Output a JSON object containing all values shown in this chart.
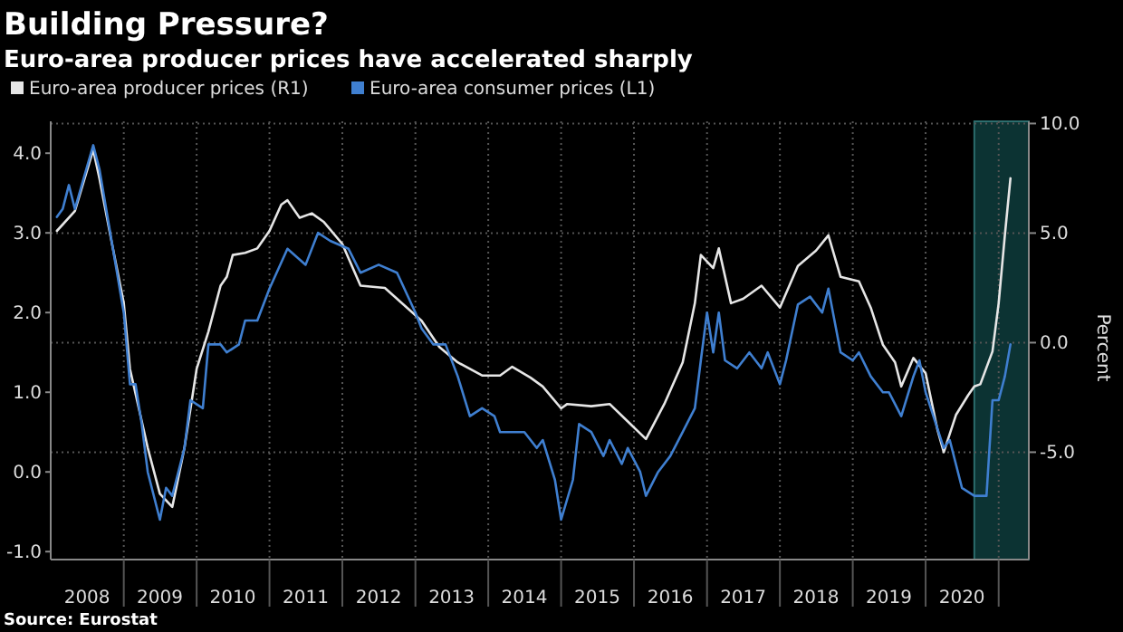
{
  "chart_data": {
    "type": "line",
    "title": "Building Pressure?",
    "subtitle": "Euro-area producer prices have accelerated sharply",
    "y2label": "Percent",
    "annotations": [
      "Source:  Eurostat"
    ],
    "legend": "top left",
    "grid": true,
    "marker": "none",
    "line_style": "solid",
    "xlim": [
      "2008-01",
      "2021-06"
    ],
    "xticks": [
      {
        "value": "2008-07",
        "label": "2008"
      },
      {
        "value": "2009-01",
        "label": null
      },
      {
        "value": "2009-07",
        "label": "2009"
      },
      {
        "value": "2010-01",
        "label": null
      },
      {
        "value": "2010-07",
        "label": "2010"
      },
      {
        "value": "2011-01",
        "label": null
      },
      {
        "value": "2011-07",
        "label": "2011"
      },
      {
        "value": "2012-01",
        "label": null
      },
      {
        "value": "2012-07",
        "label": "2012"
      },
      {
        "value": "2013-01",
        "label": null
      },
      {
        "value": "2013-07",
        "label": "2013"
      },
      {
        "value": "2014-01",
        "label": null
      },
      {
        "value": "2014-07",
        "label": "2014"
      },
      {
        "value": "2015-01",
        "label": null
      },
      {
        "value": "2015-07",
        "label": "2015"
      },
      {
        "value": "2016-01",
        "label": null
      },
      {
        "value": "2016-07",
        "label": "2016"
      },
      {
        "value": "2017-01",
        "label": null
      },
      {
        "value": "2017-07",
        "label": "2017"
      },
      {
        "value": "2018-01",
        "label": null
      },
      {
        "value": "2018-07",
        "label": "2018"
      },
      {
        "value": "2019-01",
        "label": null
      },
      {
        "value": "2019-07",
        "label": "2019"
      },
      {
        "value": "2020-01",
        "label": null
      },
      {
        "value": "2020-07",
        "label": "2020"
      },
      {
        "value": "2021-01",
        "label": null
      }
    ],
    "ylim": [
      -1.1,
      4.4
    ],
    "yticks": [
      {
        "value": -1,
        "label": "-1.0"
      },
      {
        "value": 0,
        "label": "0.0"
      },
      {
        "value": 1,
        "label": "1.0"
      },
      {
        "value": 2,
        "label": "2.0"
      },
      {
        "value": 3,
        "label": "3.0"
      },
      {
        "value": 4,
        "label": "4.0"
      }
    ],
    "y2lim": [
      -9.9,
      10.1
    ],
    "y2ticks": [
      {
        "value": -5,
        "label": "-5.0"
      },
      {
        "value": 0,
        "label": "0.0"
      },
      {
        "value": 5,
        "label": "5.0"
      },
      {
        "value": 10,
        "label": "10.0"
      }
    ],
    "bands": [
      {
        "axis": "x",
        "from": "2020-09",
        "to": "2021-06",
        "color": "#0c3333"
      }
    ],
    "series": [
      {
        "name": "Euro-area producer prices (R1)",
        "color": "#e6e6e6",
        "axis": "y2",
        "x": [
          "2008-02",
          "2008-05",
          "2008-08",
          "2008-09",
          "2008-11",
          "2009-01",
          "2009-02",
          "2009-05",
          "2009-07",
          "2009-09",
          "2009-11",
          "2010-01",
          "2010-03",
          "2010-05",
          "2010-06",
          "2010-07",
          "2010-09",
          "2010-11",
          "2011-01",
          "2011-03",
          "2011-04",
          "2011-06",
          "2011-08",
          "2011-10",
          "2012-01",
          "2012-04",
          "2012-08",
          "2013-02",
          "2013-05",
          "2013-08",
          "2013-12",
          "2014-03",
          "2014-05",
          "2014-08",
          "2014-10",
          "2015-01",
          "2015-02",
          "2015-06",
          "2015-09",
          "2015-12",
          "2016-03",
          "2016-06",
          "2016-09",
          "2016-11",
          "2016-12",
          "2017-02",
          "2017-03",
          "2017-05",
          "2017-07",
          "2017-10",
          "2018-01",
          "2018-04",
          "2018-07",
          "2018-09",
          "2018-11",
          "2019-02",
          "2019-04",
          "2019-06",
          "2019-08",
          "2019-09",
          "2019-11",
          "2020-01",
          "2020-03",
          "2020-04",
          "2020-06",
          "2020-08",
          "2020-09",
          "2020-10",
          "2020-12",
          "2021-01",
          "2021-02",
          "2021-03"
        ],
        "values": [
          5.1,
          6.0,
          8.8,
          7.5,
          4.6,
          1.8,
          -1.2,
          -4.8,
          -6.9,
          -7.5,
          -4.8,
          -1.2,
          0.5,
          2.6,
          3.0,
          4.0,
          4.1,
          4.3,
          5.1,
          6.3,
          6.5,
          5.7,
          5.9,
          5.5,
          4.5,
          2.6,
          2.5,
          1.0,
          -0.2,
          -0.9,
          -1.5,
          -1.5,
          -1.1,
          -1.6,
          -2.0,
          -3.0,
          -2.8,
          -2.9,
          -2.8,
          -3.6,
          -4.4,
          -2.8,
          -0.9,
          1.8,
          4.0,
          3.4,
          4.3,
          1.8,
          2.0,
          2.6,
          1.6,
          3.5,
          4.2,
          4.9,
          3.0,
          2.8,
          1.6,
          -0.1,
          -0.9,
          -2.0,
          -0.7,
          -1.4,
          -4.0,
          -5.0,
          -3.3,
          -2.4,
          -2.0,
          -1.9,
          -0.4,
          1.8,
          4.9,
          7.5
        ]
      },
      {
        "name": "Euro-area consumer prices (L1)",
        "color": "#3f7fd0",
        "axis": "y",
        "x": [
          "2008-02",
          "2008-03",
          "2008-04",
          "2008-05",
          "2008-08",
          "2008-09",
          "2008-11",
          "2009-01",
          "2009-02",
          "2009-03",
          "2009-04",
          "2009-05",
          "2009-07",
          "2009-08",
          "2009-09",
          "2009-11",
          "2009-12",
          "2010-02",
          "2010-03",
          "2010-05",
          "2010-06",
          "2010-08",
          "2010-09",
          "2010-11",
          "2011-01",
          "2011-04",
          "2011-07",
          "2011-09",
          "2011-11",
          "2012-02",
          "2012-04",
          "2012-07",
          "2012-10",
          "2013-01",
          "2013-02",
          "2013-04",
          "2013-06",
          "2013-08",
          "2013-10",
          "2013-12",
          "2014-02",
          "2014-03",
          "2014-05",
          "2014-07",
          "2014-09",
          "2014-10",
          "2014-12",
          "2015-01",
          "2015-03",
          "2015-04",
          "2015-06",
          "2015-08",
          "2015-09",
          "2015-11",
          "2015-12",
          "2016-02",
          "2016-03",
          "2016-05",
          "2016-07",
          "2016-09",
          "2016-11",
          "2016-12",
          "2017-01",
          "2017-02",
          "2017-03",
          "2017-04",
          "2017-06",
          "2017-08",
          "2017-10",
          "2017-11",
          "2018-01",
          "2018-02",
          "2018-04",
          "2018-06",
          "2018-08",
          "2018-09",
          "2018-11",
          "2019-01",
          "2019-02",
          "2019-04",
          "2019-06",
          "2019-07",
          "2019-09",
          "2019-11",
          "2019-12",
          "2020-01",
          "2020-04",
          "2020-05",
          "2020-07",
          "2020-09",
          "2020-11",
          "2020-12",
          "2021-01",
          "2021-02",
          "2021-03"
        ],
        "values": [
          3.2,
          3.3,
          3.6,
          3.3,
          4.1,
          3.8,
          2.9,
          2.0,
          1.1,
          1.1,
          0.6,
          0.0,
          -0.6,
          -0.2,
          -0.3,
          0.3,
          0.9,
          0.8,
          1.6,
          1.6,
          1.5,
          1.6,
          1.9,
          1.9,
          2.3,
          2.8,
          2.6,
          3.0,
          2.9,
          2.8,
          2.5,
          2.6,
          2.5,
          2.0,
          1.8,
          1.6,
          1.6,
          1.2,
          0.7,
          0.8,
          0.7,
          0.5,
          0.5,
          0.5,
          0.3,
          0.4,
          -0.1,
          -0.6,
          -0.1,
          0.6,
          0.5,
          0.2,
          0.4,
          0.1,
          0.3,
          0.0,
          -0.3,
          0.0,
          0.2,
          0.5,
          0.8,
          1.4,
          2.0,
          1.5,
          2.0,
          1.4,
          1.3,
          1.5,
          1.3,
          1.5,
          1.1,
          1.4,
          2.1,
          2.2,
          2.0,
          2.3,
          1.5,
          1.4,
          1.5,
          1.2,
          1.0,
          1.0,
          0.7,
          1.2,
          1.4,
          1.0,
          0.3,
          0.4,
          -0.2,
          -0.3,
          -0.3,
          0.9,
          0.9,
          1.2,
          1.6
        ]
      }
    ]
  }
}
